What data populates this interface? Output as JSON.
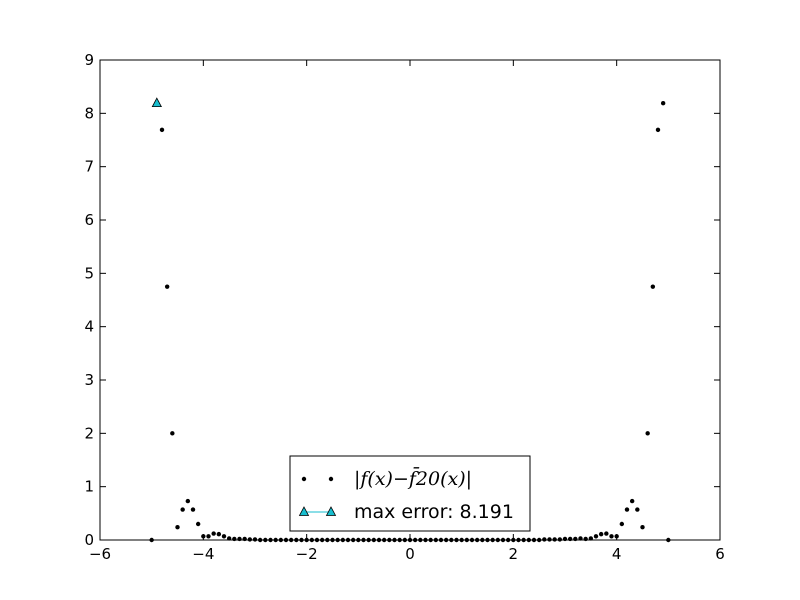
{
  "chart_data": {
    "type": "scatter",
    "title": "",
    "xlabel": "",
    "ylabel": "",
    "xlim": [
      -6,
      6
    ],
    "ylim": [
      0,
      9
    ],
    "x_ticks": [
      "−6",
      "−4",
      "−2",
      "0",
      "2",
      "4",
      "6"
    ],
    "y_ticks": [
      "0",
      "1",
      "2",
      "3",
      "4",
      "5",
      "6",
      "7",
      "8",
      "9"
    ],
    "grid": false,
    "legend_position": "bottom-center",
    "series": [
      {
        "name": "|f(x)−f̄20(x)|",
        "marker": "dot",
        "color": "#000000",
        "x": [
          -5.0,
          -4.9,
          -4.8,
          -4.7,
          -4.6,
          -4.5,
          -4.4,
          -4.3,
          -4.2,
          -4.1,
          -4.0,
          -3.9,
          -3.8,
          -3.7,
          -3.6,
          -3.5,
          -3.4,
          -3.3,
          -3.2,
          -3.1,
          -3.0,
          -2.9,
          -2.8,
          -2.7,
          -2.6,
          -2.5,
          -2.4,
          -2.3,
          -2.2,
          -2.1,
          -2.0,
          -1.9,
          -1.8,
          -1.7,
          -1.6,
          -1.5,
          -1.4,
          -1.3,
          -1.2,
          -1.1,
          -1.0,
          -0.9,
          -0.8,
          -0.7,
          -0.6,
          -0.5,
          -0.4,
          -0.3,
          -0.2,
          -0.1,
          0.0,
          0.1,
          0.2,
          0.3,
          0.4,
          0.5,
          0.6,
          0.7,
          0.8,
          0.9,
          1.0,
          1.1,
          1.2,
          1.3,
          1.4,
          1.5,
          1.6,
          1.7,
          1.8,
          1.9,
          2.0,
          2.1,
          2.2,
          2.3,
          2.4,
          2.5,
          2.6,
          2.7,
          2.8,
          2.9,
          3.0,
          3.1,
          3.2,
          3.3,
          3.4,
          3.5,
          3.6,
          3.7,
          3.8,
          3.9,
          4.0,
          4.1,
          4.2,
          4.3,
          4.4,
          4.5,
          4.6,
          4.7,
          4.8,
          4.9,
          5.0
        ],
        "y": [
          0.0,
          8.19,
          7.69,
          4.75,
          2.0,
          0.24,
          0.57,
          0.73,
          0.57,
          0.3,
          0.07,
          0.07,
          0.12,
          0.11,
          0.07,
          0.03,
          0.02,
          0.02,
          0.02,
          0.01,
          0.01,
          0.0,
          0.0,
          0.0,
          0.0,
          0.0,
          0.0,
          0.0,
          0.0,
          0.0,
          0.0,
          0.0,
          0.0,
          0.0,
          0.0,
          0.0,
          0.0,
          0.0,
          0.0,
          0.0,
          0.0,
          0.0,
          0.0,
          0.0,
          0.0,
          0.0,
          0.0,
          0.0,
          0.0,
          0.0,
          0.0,
          0.0,
          0.0,
          0.0,
          0.0,
          0.0,
          0.0,
          0.0,
          0.0,
          0.0,
          0.0,
          0.0,
          0.0,
          0.0,
          0.0,
          0.0,
          0.0,
          0.0,
          0.0,
          0.0,
          0.0,
          0.0,
          0.0,
          0.0,
          0.0,
          0.0,
          0.01,
          0.01,
          0.01,
          0.01,
          0.02,
          0.02,
          0.02,
          0.03,
          0.02,
          0.03,
          0.07,
          0.11,
          0.12,
          0.07,
          0.07,
          0.3,
          0.57,
          0.73,
          0.57,
          0.24,
          2.0,
          4.75,
          7.69,
          8.19,
          0.0
        ]
      },
      {
        "name": "max error: 8.191",
        "marker": "triangle",
        "color": "#17becf",
        "x": [
          -4.9
        ],
        "y": [
          8.191
        ]
      }
    ]
  }
}
